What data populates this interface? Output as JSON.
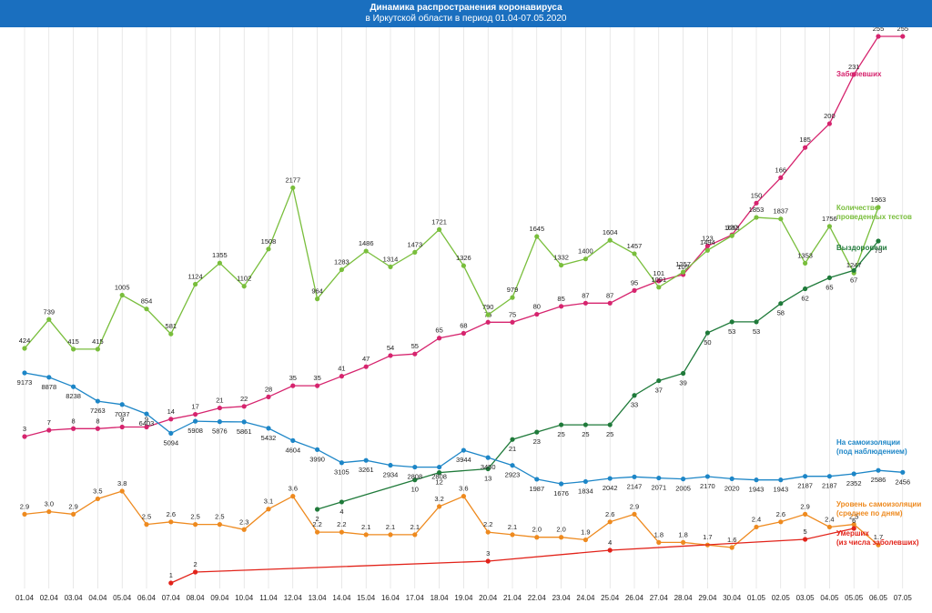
{
  "header": {
    "title_line1": "Динамика распространения коронавируса",
    "title_line2": "в Иркутской области в период  01.04-07.05.2020"
  },
  "chart_data": {
    "type": "line",
    "categories": [
      "01.04",
      "02.04",
      "03.04",
      "04.04",
      "05.04",
      "06.04",
      "07.04",
      "08.04",
      "09.04",
      "10.04",
      "11.04",
      "12.04",
      "13.04",
      "14.04",
      "15.04",
      "16.04",
      "17.04",
      "18.04",
      "19.04",
      "20.04",
      "21.04",
      "22.04",
      "23.04",
      "24.04",
      "25.04",
      "26.04",
      "27.04",
      "28.04",
      "29.04",
      "30.04",
      "01.05",
      "02.05",
      "03.05",
      "04.05",
      "05.05",
      "06.05",
      "07.05"
    ],
    "series": [
      {
        "key": "sick",
        "legend": [
          "Заболевших"
        ],
        "color": "#d6246e",
        "values": [
          3,
          7,
          8,
          8,
          9,
          9,
          14,
          17,
          21,
          22,
          28,
          35,
          35,
          41,
          47,
          54,
          55,
          65,
          68,
          75,
          75,
          80,
          85,
          87,
          87,
          95,
          101,
          105,
          123,
          130,
          150,
          166,
          185,
          200,
          231,
          255,
          255
        ]
      },
      {
        "key": "tests",
        "legend": [
          "Количество",
          "проведенных тестов"
        ],
        "color": "#79be3c",
        "values": [
          424,
          739,
          415,
          415,
          1005,
          854,
          581,
          1124,
          1355,
          1102,
          1508,
          2177,
          964,
          1283,
          1486,
          1314,
          1473,
          1721,
          1326,
          790,
          979,
          1645,
          1332,
          1400,
          1604,
          1457,
          1091,
          1257,
          1494,
          1653,
          1853,
          1837,
          1353,
          1756,
          1247,
          1963,
          null
        ]
      },
      {
        "key": "recovered",
        "legend": [
          "Выздоровели"
        ],
        "color": "#1f7a3a",
        "values": [
          null,
          null,
          null,
          null,
          null,
          null,
          null,
          null,
          null,
          null,
          null,
          null,
          2,
          4,
          null,
          null,
          10,
          12,
          null,
          13,
          21,
          23,
          25,
          25,
          25,
          33,
          37,
          39,
          50,
          53,
          53,
          58,
          62,
          65,
          67,
          75,
          null
        ]
      },
      {
        "key": "isolation",
        "legend": [
          "На самоизоляции",
          "(под наблюдением)"
        ],
        "color": "#1d86c7",
        "values": [
          9173,
          8878,
          8238,
          7263,
          7037,
          6403,
          5094,
          5908,
          5876,
          5861,
          5432,
          4604,
          3990,
          3105,
          3261,
          2934,
          2808,
          2808,
          3944,
          3450,
          2923,
          1987,
          1676,
          1834,
          2042,
          2147,
          2071,
          2005,
          2170,
          2020,
          1943,
          1943,
          2187,
          2187,
          2352,
          2586,
          2456
        ]
      },
      {
        "key": "level",
        "legend": [
          "Уровень самоизоляции",
          "(среднее по дням)"
        ],
        "color": "#ee8a1f",
        "values": [
          2.9,
          3.0,
          2.9,
          3.5,
          3.8,
          2.5,
          2.6,
          2.5,
          2.5,
          2.3,
          3.1,
          3.6,
          2.2,
          2.2,
          2.1,
          2.1,
          2.1,
          3.2,
          3.6,
          2.2,
          2.1,
          2.0,
          2.0,
          1.9,
          2.6,
          2.9,
          1.8,
          1.8,
          1.7,
          1.6,
          2.4,
          2.6,
          2.9,
          2.4,
          2.5,
          1.7,
          null
        ]
      },
      {
        "key": "deaths",
        "legend": [
          "Умерших",
          "(из числа заболевших)"
        ],
        "color": "#e2231a",
        "values": [
          null,
          null,
          null,
          null,
          null,
          null,
          1,
          2,
          null,
          null,
          null,
          null,
          null,
          null,
          null,
          null,
          null,
          null,
          null,
          3,
          null,
          null,
          null,
          null,
          4,
          null,
          null,
          null,
          null,
          null,
          null,
          null,
          5,
          null,
          6,
          null,
          null
        ]
      }
    ]
  }
}
